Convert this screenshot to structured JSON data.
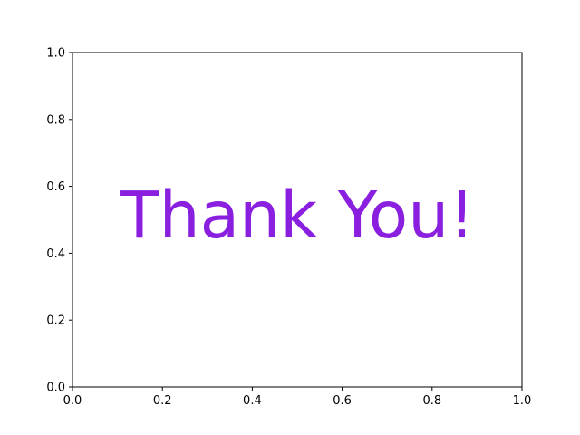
{
  "chart_data": {
    "type": "scatter",
    "title": "",
    "xlabel": "",
    "ylabel": "",
    "xlim": [
      0,
      1
    ],
    "ylim": [
      0,
      1
    ],
    "x_ticks": [
      0.0,
      0.2,
      0.4,
      0.6,
      0.8,
      1.0
    ],
    "y_ticks": [
      0.0,
      0.2,
      0.4,
      0.6,
      0.8,
      1.0
    ],
    "x_tick_labels": [
      "0.0",
      "0.2",
      "0.4",
      "0.6",
      "0.8",
      "1.0"
    ],
    "y_tick_labels": [
      "0.0",
      "0.2",
      "0.4",
      "0.6",
      "0.8",
      "1.0"
    ],
    "grid": false,
    "series": [],
    "annotations": [
      {
        "text": "Thank You!",
        "x": 0.5,
        "y": 0.5,
        "color": "#8a1fe0"
      }
    ]
  }
}
